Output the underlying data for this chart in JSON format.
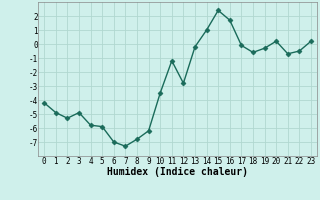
{
  "x": [
    0,
    1,
    2,
    3,
    4,
    5,
    6,
    7,
    8,
    9,
    10,
    11,
    12,
    13,
    14,
    15,
    16,
    17,
    18,
    19,
    20,
    21,
    22,
    23
  ],
  "y": [
    -4.2,
    -4.9,
    -5.3,
    -4.9,
    -5.8,
    -5.9,
    -7.0,
    -7.3,
    -6.8,
    -6.2,
    -3.5,
    -1.2,
    -2.8,
    -0.2,
    1.0,
    2.4,
    1.7,
    -0.1,
    -0.6,
    -0.3,
    0.2,
    -0.7,
    -0.5,
    0.2
  ],
  "line_color": "#1a6b5a",
  "marker": "D",
  "marker_size": 2.5,
  "bg_color": "#cff0eb",
  "grid_color": "#b0d8d0",
  "xlabel": "Humidex (Indice chaleur)",
  "xlim": [
    -0.5,
    23.5
  ],
  "ylim": [
    -8,
    3
  ],
  "xticks": [
    0,
    1,
    2,
    3,
    4,
    5,
    6,
    7,
    8,
    9,
    10,
    11,
    12,
    13,
    14,
    15,
    16,
    17,
    18,
    19,
    20,
    21,
    22,
    23
  ],
  "yticks": [
    -7,
    -6,
    -5,
    -4,
    -3,
    -2,
    -1,
    0,
    1,
    2
  ],
  "tick_fontsize": 5.5,
  "xlabel_fontsize": 7.0,
  "line_width": 1.0
}
